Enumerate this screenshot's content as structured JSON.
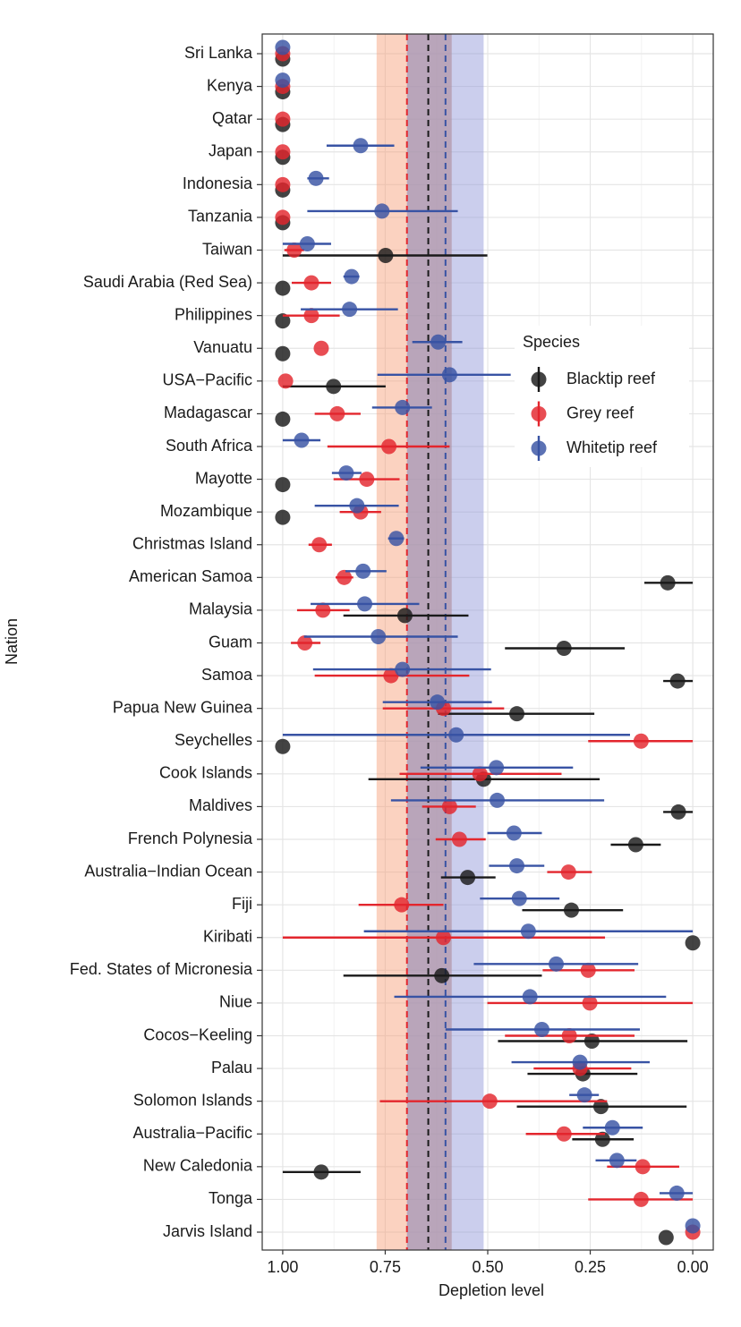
{
  "chart_data": {
    "type": "dot_errorbar",
    "x_label": "Depletion level",
    "y_label": "Nation",
    "categories": [
      "Sri Lanka",
      "Kenya",
      "Qatar",
      "Japan",
      "Indonesia",
      "Tanzania",
      "Taiwan",
      "Saudi Arabia (Red Sea)",
      "Philippines",
      "Vanuatu",
      "USA−Pacific",
      "Madagascar",
      "South Africa",
      "Mayotte",
      "Mozambique",
      "Christmas Island",
      "American Samoa",
      "Malaysia",
      "Guam",
      "Samoa",
      "Papua New Guinea",
      "Seychelles",
      "Cook Islands",
      "Maldives",
      "French Polynesia",
      "Australia−Indian Ocean",
      "Fiji",
      "Kiribati",
      "Fed. States of Micronesia",
      "Niue",
      "Cocos−Keeling",
      "Palau",
      "Solomon Islands",
      "Australia−Pacific",
      "New Caledonia",
      "Tonga",
      "Jarvis Island"
    ],
    "xlim": [
      1.05,
      -0.05
    ],
    "xticks": [
      {
        "value": 1,
        "label": "1.00"
      },
      {
        "value": 0.75,
        "label": "0.75"
      },
      {
        "value": 0.5,
        "label": "0.50"
      },
      {
        "value": 0.25,
        "label": "0.25"
      },
      {
        "value": 0,
        "label": "0.00"
      }
    ],
    "grid": true,
    "legend": "right",
    "legend_title": "Species",
    "series": [
      {
        "name": "Blacktip reef",
        "color": "#1a1a1a",
        "band_color": "#8a8a8a",
        "mean": 0.645,
        "band": [
          0.697,
          0.588
        ],
        "values": [
          1,
          1,
          1,
          1,
          1,
          1,
          0.749,
          1,
          1,
          1,
          0.876,
          1,
          null,
          1,
          1,
          null,
          0.061,
          0.702,
          0.314,
          0.037,
          0.429,
          1,
          0.51,
          0.035,
          0.139,
          0.549,
          0.296,
          0.0,
          0.612,
          null,
          0.246,
          0.268,
          0.224,
          0.22,
          0.906,
          null,
          0.065
        ],
        "upper": [
          null,
          null,
          null,
          null,
          null,
          null,
          1.0,
          null,
          null,
          null,
          1.0,
          null,
          null,
          null,
          null,
          null,
          0.118,
          0.852,
          0.458,
          0.072,
          0.621,
          null,
          0.791,
          0.072,
          0.2,
          0.614,
          0.416,
          null,
          0.852,
          null,
          0.475,
          0.403,
          0.429,
          0.294,
          1.0,
          null,
          null
        ],
        "lower": [
          null,
          null,
          null,
          null,
          null,
          null,
          0.501,
          null,
          null,
          null,
          0.749,
          null,
          null,
          null,
          null,
          null,
          0.0,
          0.547,
          0.166,
          0.0,
          0.24,
          null,
          0.227,
          0.0,
          0.078,
          0.481,
          0.17,
          null,
          0.368,
          null,
          0.013,
          0.135,
          0.015,
          0.144,
          0.81,
          null,
          null
        ]
      },
      {
        "name": "Grey reef",
        "color": "#e3262d",
        "band_color": "#f79c74",
        "mean": 0.697,
        "band": [
          0.771,
          0.588
        ],
        "values": [
          1,
          1,
          1,
          1,
          1,
          1,
          0.972,
          0.93,
          0.93,
          0.906,
          0.993,
          0.867,
          0.741,
          0.795,
          0.81,
          0.911,
          0.85,
          0.902,
          0.946,
          0.736,
          0.608,
          0.126,
          0.519,
          0.593,
          0.569,
          0.303,
          0.71,
          0.608,
          0.255,
          0.251,
          0.301,
          0.275,
          0.495,
          0.314,
          0.122,
          0.126,
          0.0
        ],
        "upper": [
          null,
          null,
          null,
          null,
          null,
          null,
          0.996,
          0.978,
          1.0,
          null,
          null,
          0.922,
          0.891,
          0.876,
          0.861,
          0.937,
          0.871,
          0.965,
          0.98,
          0.922,
          0.756,
          0.255,
          0.715,
          0.66,
          0.627,
          0.355,
          0.815,
          1.0,
          0.366,
          0.501,
          0.458,
          0.388,
          0.763,
          0.407,
          0.209,
          0.255,
          null
        ],
        "lower": [
          null,
          null,
          null,
          null,
          null,
          null,
          0.948,
          0.882,
          0.861,
          null,
          null,
          0.81,
          0.593,
          0.715,
          0.76,
          0.88,
          0.828,
          0.837,
          0.908,
          0.545,
          0.46,
          0.0,
          0.32,
          0.529,
          0.505,
          0.246,
          0.608,
          0.214,
          0.142,
          0.0,
          0.142,
          0.15,
          0.209,
          0.214,
          0.033,
          0.0,
          null
        ]
      },
      {
        "name": "Whitetip reef",
        "color": "#3853a4",
        "band_color": "#8b93d6",
        "mean": 0.603,
        "band": [
          0.697,
          0.51
        ],
        "values": [
          1,
          1,
          null,
          0.81,
          0.919,
          0.758,
          0.94,
          0.832,
          0.837,
          0.621,
          0.593,
          0.708,
          0.954,
          0.845,
          0.819,
          0.723,
          0.804,
          0.8,
          0.767,
          0.708,
          0.623,
          0.577,
          0.479,
          0.477,
          0.436,
          0.429,
          0.423,
          0.401,
          0.333,
          0.397,
          0.368,
          0.275,
          0.264,
          0.196,
          0.185,
          0.039,
          0.0
        ],
        "upper": [
          null,
          null,
          null,
          0.893,
          0.94,
          0.94,
          1.0,
          0.852,
          0.956,
          0.684,
          0.769,
          0.782,
          1.0,
          0.88,
          0.922,
          0.743,
          0.847,
          0.932,
          0.948,
          0.926,
          0.756,
          1.0,
          0.664,
          0.736,
          0.501,
          0.497,
          0.519,
          0.802,
          0.534,
          0.728,
          0.603,
          0.442,
          0.301,
          0.268,
          0.237,
          0.081,
          null
        ],
        "lower": [
          null,
          null,
          null,
          0.728,
          0.887,
          0.573,
          0.882,
          0.813,
          0.719,
          0.562,
          0.444,
          0.636,
          0.908,
          0.808,
          0.717,
          0.704,
          0.747,
          0.667,
          0.573,
          0.492,
          0.49,
          0.153,
          0.292,
          0.216,
          0.368,
          0.362,
          0.325,
          0.0,
          0.133,
          0.065,
          0.129,
          0.105,
          0.229,
          0.122,
          0.137,
          0.0,
          null
        ]
      }
    ]
  }
}
